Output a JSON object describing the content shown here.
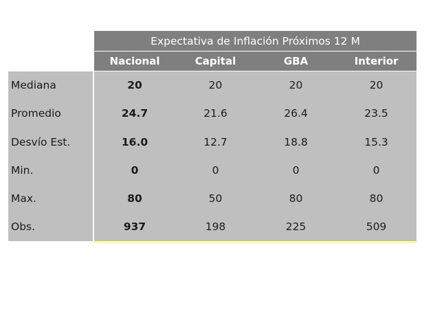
{
  "table": {
    "title": "Expectativa de Inflación Próximos 12 M",
    "columns": [
      "Nacional",
      "Capital",
      "GBA",
      "Interior"
    ],
    "rows": [
      {
        "label": "Mediana",
        "values": [
          "20",
          "20",
          "20",
          "20"
        ]
      },
      {
        "label": "Promedio",
        "values": [
          "24.7",
          "21.6",
          "26.4",
          "23.5"
        ]
      },
      {
        "label": "Desvío Est.",
        "values": [
          "16.0",
          "12.7",
          "18.8",
          "15.3"
        ]
      },
      {
        "label": "Min.",
        "values": [
          "0",
          "0",
          "0",
          "0"
        ]
      },
      {
        "label": "Max.",
        "values": [
          "80",
          "50",
          "80",
          "80"
        ]
      },
      {
        "label": "Obs.",
        "values": [
          "937",
          "198",
          "225",
          "509"
        ]
      }
    ]
  },
  "colors": {
    "header_bg": "#7f7f7f",
    "body_bg": "#bfbfbf",
    "accent_line": "#ffff99"
  }
}
